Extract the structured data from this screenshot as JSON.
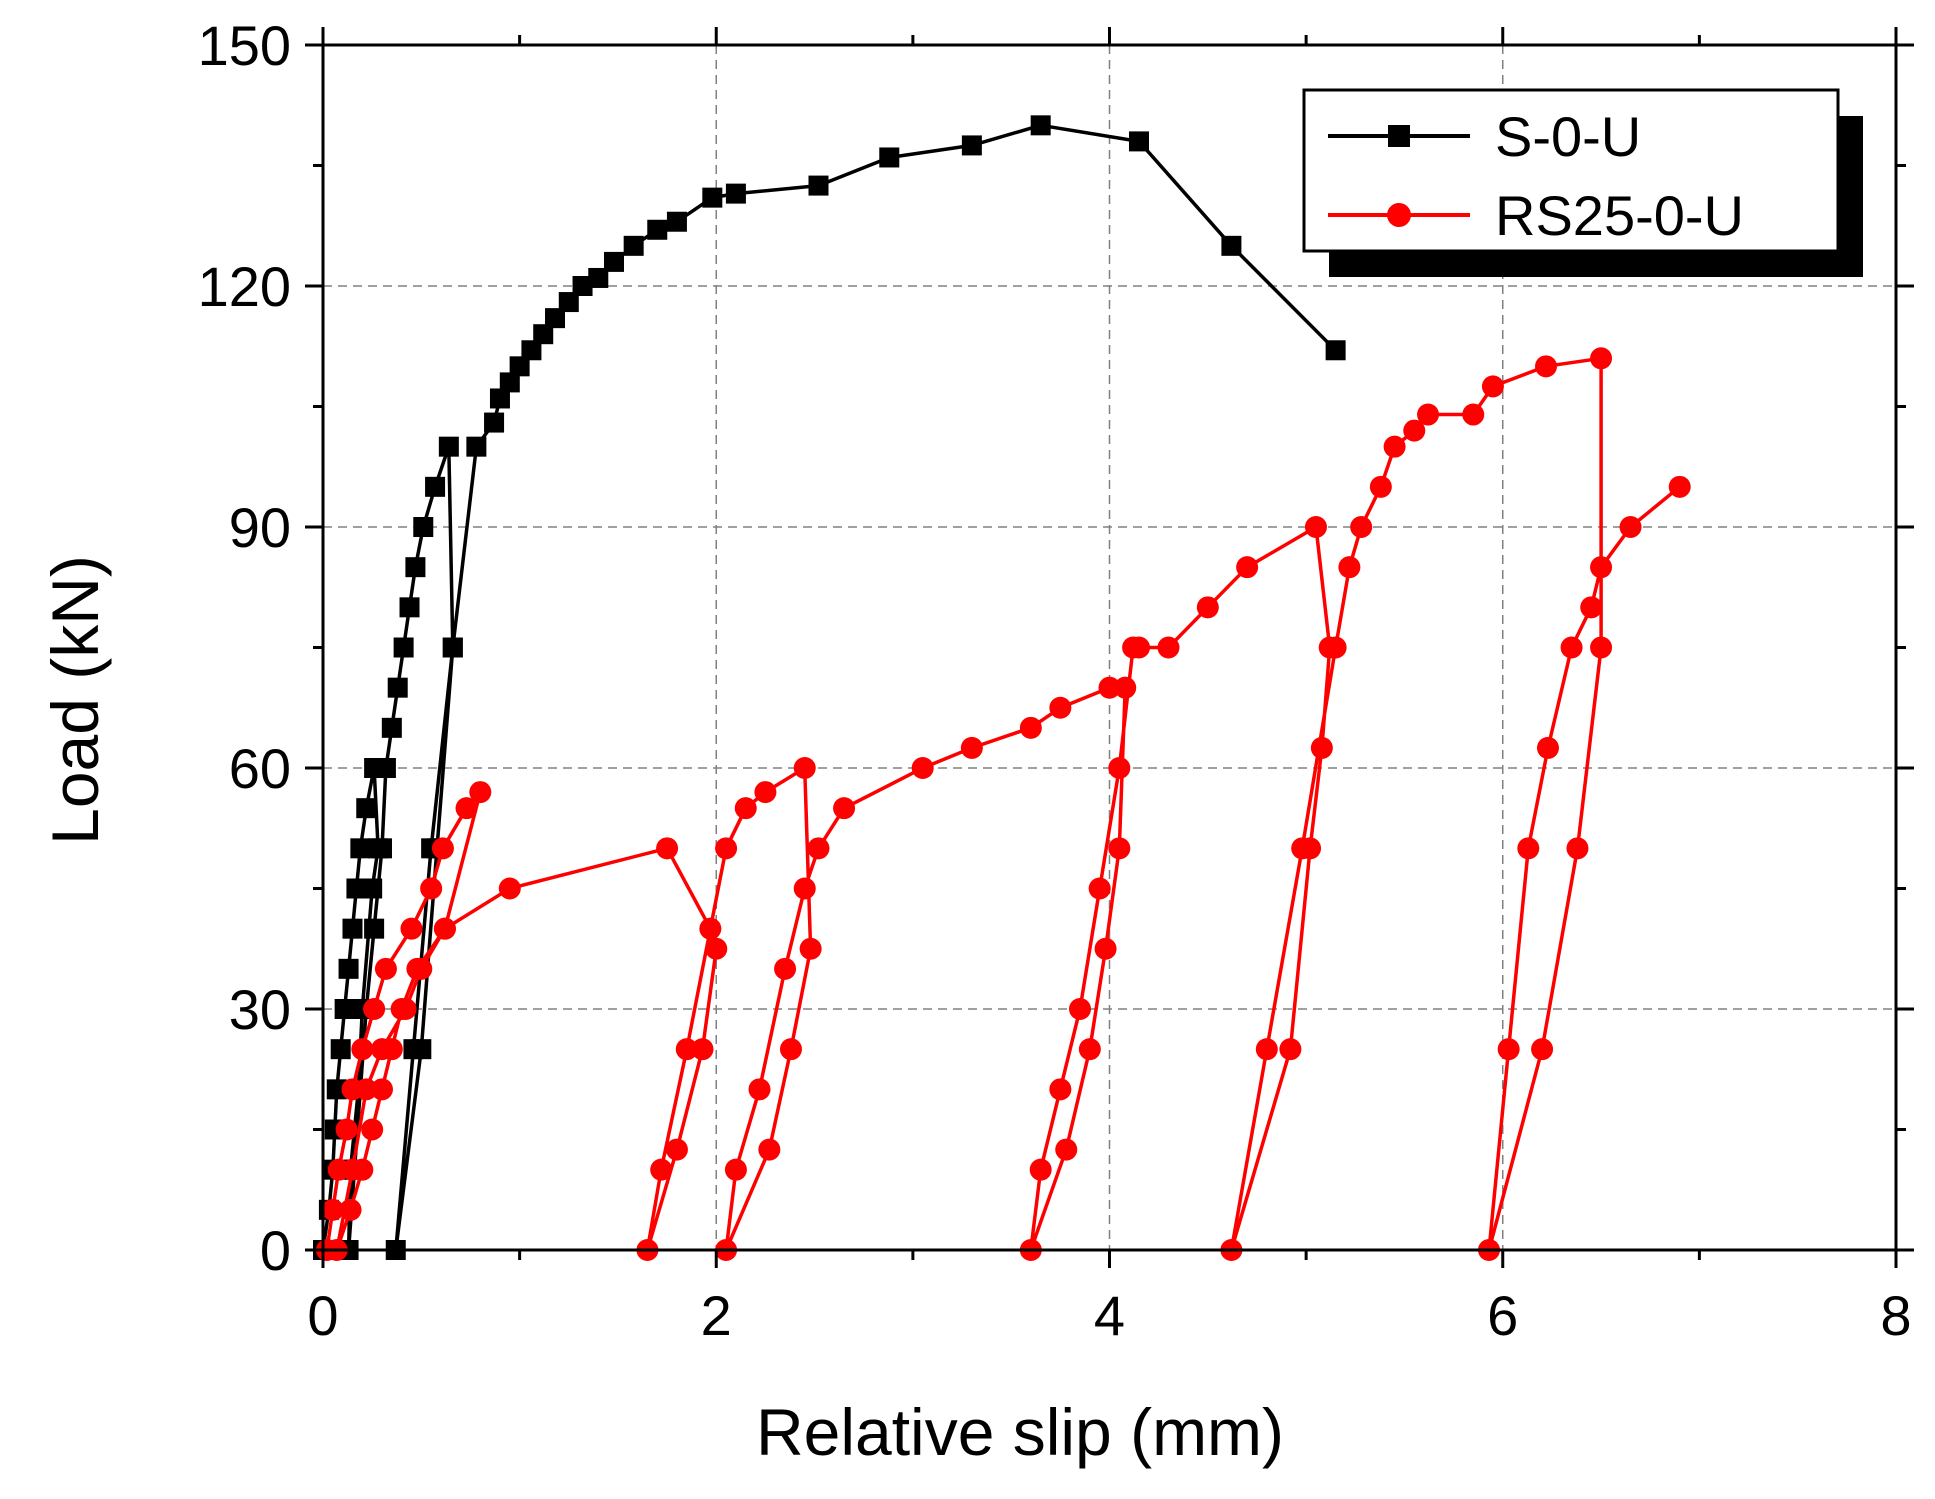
{
  "chart_data": {
    "type": "line",
    "title": "",
    "xlabel": "Relative slip (mm)",
    "ylabel": "Load (kN)",
    "xlim": [
      0,
      8
    ],
    "ylim": [
      0,
      150
    ],
    "x_ticks": [
      "0",
      "2",
      "4",
      "6",
      "8"
    ],
    "y_ticks": [
      "0",
      "30",
      "60",
      "90",
      "120",
      "150"
    ],
    "grid": true,
    "legend_position": "top-right",
    "colors": {
      "S-0-U": "#000000",
      "RS25-0-U": "#ff0000",
      "grid": "#808080"
    },
    "series": [
      {
        "name": "S-0-U",
        "marker": "square",
        "color": "#000000",
        "points": [
          [
            0.0,
            0
          ],
          [
            0.03,
            5
          ],
          [
            0.05,
            10
          ],
          [
            0.06,
            15
          ],
          [
            0.07,
            20
          ],
          [
            0.09,
            25
          ],
          [
            0.11,
            30
          ],
          [
            0.13,
            35
          ],
          [
            0.15,
            40
          ],
          [
            0.17,
            45
          ],
          [
            0.19,
            50
          ],
          [
            0.22,
            55
          ],
          [
            0.26,
            60
          ],
          [
            0.28,
            50
          ],
          [
            0.25,
            45
          ],
          [
            0.2,
            30
          ],
          [
            0.18,
            20
          ],
          [
            0.14,
            10
          ],
          [
            0.13,
            0
          ],
          [
            0.16,
            10
          ],
          [
            0.19,
            20
          ],
          [
            0.22,
            30
          ],
          [
            0.26,
            40
          ],
          [
            0.3,
            50
          ],
          [
            0.32,
            60
          ],
          [
            0.35,
            65
          ],
          [
            0.38,
            70
          ],
          [
            0.41,
            75
          ],
          [
            0.44,
            80
          ],
          [
            0.47,
            85
          ],
          [
            0.51,
            90
          ],
          [
            0.57,
            95
          ],
          [
            0.64,
            100
          ],
          [
            0.66,
            75
          ],
          [
            0.58,
            50
          ],
          [
            0.5,
            25
          ],
          [
            0.37,
            0
          ],
          [
            0.46,
            25
          ],
          [
            0.55,
            50
          ],
          [
            0.66,
            75
          ],
          [
            0.78,
            100
          ],
          [
            0.87,
            103
          ],
          [
            0.9,
            106
          ],
          [
            0.95,
            108
          ],
          [
            1.0,
            110
          ],
          [
            1.06,
            112
          ],
          [
            1.12,
            114
          ],
          [
            1.18,
            116
          ],
          [
            1.25,
            118
          ],
          [
            1.32,
            120
          ],
          [
            1.4,
            121
          ],
          [
            1.48,
            123
          ],
          [
            1.58,
            125
          ],
          [
            1.7,
            127
          ],
          [
            1.8,
            128
          ],
          [
            1.98,
            131
          ],
          [
            2.1,
            131.5
          ],
          [
            2.52,
            132.5
          ],
          [
            2.88,
            136
          ],
          [
            3.3,
            137.5
          ],
          [
            3.65,
            140
          ],
          [
            4.15,
            138
          ],
          [
            4.62,
            125
          ],
          [
            5.15,
            112
          ]
        ]
      },
      {
        "name": "RS25-0-U",
        "marker": "circle",
        "color": "#ff0000",
        "points": [
          [
            0.02,
            0
          ],
          [
            0.05,
            5
          ],
          [
            0.08,
            10
          ],
          [
            0.12,
            15
          ],
          [
            0.15,
            20
          ],
          [
            0.2,
            25
          ],
          [
            0.26,
            30
          ],
          [
            0.32,
            35
          ],
          [
            0.45,
            40
          ],
          [
            0.55,
            45
          ],
          [
            0.61,
            50
          ],
          [
            0.73,
            55
          ],
          [
            0.8,
            57
          ],
          [
            0.62,
            40
          ],
          [
            0.48,
            35
          ],
          [
            0.4,
            30
          ],
          [
            0.35,
            25
          ],
          [
            0.3,
            20
          ],
          [
            0.25,
            15
          ],
          [
            0.2,
            10
          ],
          [
            0.14,
            5
          ],
          [
            0.07,
            0
          ],
          [
            0.15,
            10
          ],
          [
            0.22,
            20
          ],
          [
            0.3,
            25
          ],
          [
            0.42,
            30
          ],
          [
            0.5,
            35
          ],
          [
            0.62,
            40
          ],
          [
            0.95,
            45
          ],
          [
            1.75,
            50
          ],
          [
            1.97,
            40
          ],
          [
            2.0,
            37.5
          ],
          [
            1.93,
            25
          ],
          [
            1.8,
            12.5
          ],
          [
            1.65,
            0
          ],
          [
            1.72,
            10
          ],
          [
            1.85,
            25
          ],
          [
            2.05,
            50
          ],
          [
            2.15,
            55
          ],
          [
            2.25,
            57
          ],
          [
            2.45,
            60
          ],
          [
            2.48,
            37.5
          ],
          [
            2.38,
            25
          ],
          [
            2.27,
            12.5
          ],
          [
            2.05,
            0
          ],
          [
            2.1,
            10
          ],
          [
            2.22,
            20
          ],
          [
            2.35,
            35
          ],
          [
            2.45,
            45
          ],
          [
            2.52,
            50
          ],
          [
            2.65,
            55
          ],
          [
            3.05,
            60
          ],
          [
            3.3,
            62.5
          ],
          [
            3.6,
            65
          ],
          [
            3.75,
            67.5
          ],
          [
            4.0,
            70
          ],
          [
            4.08,
            70
          ],
          [
            4.05,
            50
          ],
          [
            3.98,
            37.5
          ],
          [
            3.9,
            25
          ],
          [
            3.78,
            12.5
          ],
          [
            3.6,
            0
          ],
          [
            3.65,
            10
          ],
          [
            3.75,
            20
          ],
          [
            3.85,
            30
          ],
          [
            3.95,
            45
          ],
          [
            4.05,
            60
          ],
          [
            4.12,
            75
          ],
          [
            4.15,
            75
          ],
          [
            4.3,
            75
          ],
          [
            4.5,
            80
          ],
          [
            4.7,
            85
          ],
          [
            5.05,
            90
          ],
          [
            5.12,
            75
          ],
          [
            5.08,
            62.5
          ],
          [
            5.02,
            50
          ],
          [
            4.92,
            25
          ],
          [
            4.62,
            0
          ],
          [
            4.8,
            25
          ],
          [
            4.98,
            50
          ],
          [
            5.15,
            75
          ],
          [
            5.22,
            85
          ],
          [
            5.28,
            90
          ],
          [
            5.38,
            95
          ],
          [
            5.45,
            100
          ],
          [
            5.55,
            102
          ],
          [
            5.62,
            104
          ],
          [
            5.85,
            104
          ],
          [
            5.95,
            107.5
          ],
          [
            6.22,
            110
          ],
          [
            6.5,
            111
          ],
          [
            6.5,
            75
          ],
          [
            6.38,
            50
          ],
          [
            6.2,
            25
          ],
          [
            5.93,
            0
          ],
          [
            6.03,
            25
          ],
          [
            6.13,
            50
          ],
          [
            6.23,
            62.5
          ],
          [
            6.35,
            75
          ],
          [
            6.45,
            80
          ],
          [
            6.5,
            85
          ],
          [
            6.65,
            90
          ],
          [
            6.9,
            95
          ]
        ]
      }
    ]
  }
}
